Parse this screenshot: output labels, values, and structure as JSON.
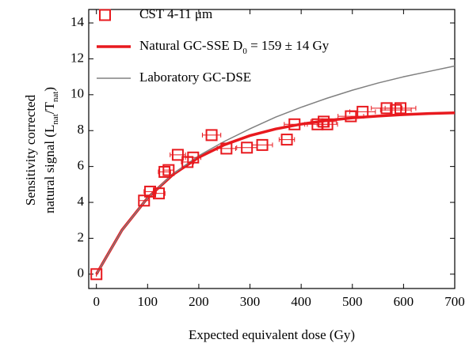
{
  "chart_data": {
    "type": "scatter",
    "xlabel": "Expected equivalent dose (Gy)",
    "ylabel": [
      [
        "Sensitivity corrected"
      ],
      [
        "natural signal (L",
        "nat",
        "/T",
        "nat",
        ")"
      ]
    ],
    "xlim": [
      -15,
      700
    ],
    "ylim": [
      -0.8,
      14.75
    ],
    "xticks": [
      0,
      100,
      200,
      300,
      400,
      500,
      600,
      700
    ],
    "yticks": [
      0,
      2,
      4,
      6,
      8,
      10,
      12,
      14
    ],
    "legend": "upper left",
    "series": [
      {
        "type": "scatter",
        "name": [
          "CST 4-11 μm"
        ],
        "color": "#e8191e",
        "x": [
          0,
          93,
          105,
          122,
          133,
          141,
          159,
          178,
          189,
          225,
          254,
          294,
          324,
          372,
          387,
          432,
          444,
          451,
          497,
          520,
          567,
          585,
          594
        ],
        "values": [
          0,
          4.1,
          4.6,
          4.5,
          5.7,
          5.8,
          6.65,
          6.25,
          6.5,
          7.75,
          7.0,
          7.05,
          7.2,
          7.5,
          8.35,
          8.35,
          8.5,
          8.35,
          8.8,
          9.05,
          9.25,
          9.15,
          9.25
        ],
        "xerr": [
          0,
          10,
          12,
          12,
          12,
          10,
          15,
          12,
          15,
          18,
          18,
          20,
          20,
          15,
          20,
          20,
          25,
          20,
          25,
          25,
          30,
          30,
          30
        ]
      },
      {
        "type": "line",
        "name": [
          "Natural GC-SSE D",
          "0",
          " = 159 ± 14 Gy"
        ],
        "color": "#e8191e",
        "width": 3.5,
        "x": [
          0,
          50,
          100,
          150,
          200,
          250,
          300,
          350,
          400,
          450,
          500,
          550,
          600,
          650,
          700
        ],
        "values": [
          0,
          2.46,
          4.25,
          5.56,
          6.51,
          7.21,
          7.72,
          8.09,
          8.36,
          8.56,
          8.71,
          8.81,
          8.89,
          8.95,
          8.99
        ]
      },
      {
        "type": "line",
        "name": [
          "Laboratory GC-DSE"
        ],
        "color": "#808080",
        "width": 1.5,
        "x": [
          0,
          50,
          100,
          150,
          200,
          250,
          300,
          350,
          400,
          450,
          500,
          550,
          600,
          650,
          700
        ],
        "values": [
          0,
          2.45,
          4.25,
          5.6,
          6.6,
          7.4,
          8.1,
          8.75,
          9.3,
          9.8,
          10.25,
          10.65,
          11.0,
          11.3,
          11.6
        ]
      }
    ]
  }
}
